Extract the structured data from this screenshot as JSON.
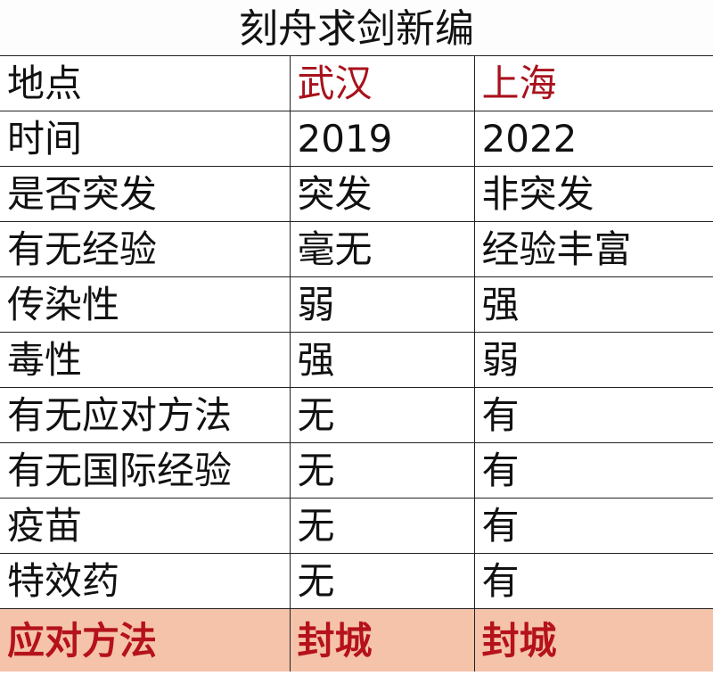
{
  "title": "刻舟求剑新编",
  "colors": {
    "header_text": "#a8121c",
    "final_row_bg": "#f5c3aa",
    "final_row_text": "#b5121b"
  },
  "header": {
    "label": "地点",
    "col1": "武汉",
    "col2": "上海"
  },
  "rows": [
    {
      "label": "时间",
      "col1": "2019",
      "col2": "2022"
    },
    {
      "label": "是否突发",
      "col1": "突发",
      "col2": "非突发"
    },
    {
      "label": "有无经验",
      "col1": "毫无",
      "col2": "经验丰富"
    },
    {
      "label": "传染性",
      "col1": "弱",
      "col2": "强"
    },
    {
      "label": "毒性",
      "col1": "强",
      "col2": "弱"
    },
    {
      "label": "有无应对方法",
      "col1": "无",
      "col2": "有"
    },
    {
      "label": "有无国际经验",
      "col1": "无",
      "col2": "有"
    },
    {
      "label": "疫苗",
      "col1": "无",
      "col2": "有"
    },
    {
      "label": "特效药",
      "col1": "无",
      "col2": "有"
    }
  ],
  "final": {
    "label": "应对方法",
    "col1": "封城",
    "col2": "封城"
  }
}
